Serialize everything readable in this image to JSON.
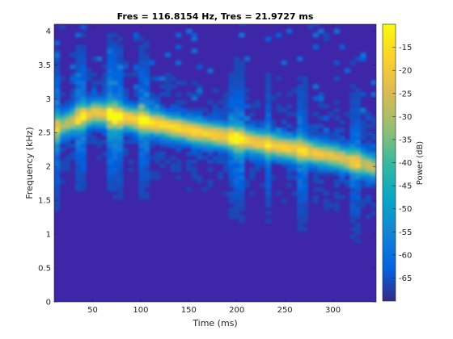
{
  "chart_data": {
    "type": "heatmap",
    "title": "Fres = 116.8154 Hz, Tres = 21.9727 ms",
    "xlabel": "Time (ms)",
    "ylabel": "Frequency (kHz)",
    "colorbar_label": "Power (dB)",
    "xlim": [
      10,
      345
    ],
    "ylim": [
      0,
      4.1
    ],
    "clim": [
      -70,
      -10
    ],
    "x_ticks": [
      50,
      100,
      150,
      200,
      250,
      300
    ],
    "y_ticks": [
      0,
      0.5,
      1,
      1.5,
      2,
      2.5,
      3,
      3.5,
      4
    ],
    "c_ticks": [
      -15,
      -20,
      -25,
      -30,
      -35,
      -40,
      -45,
      -50,
      -55,
      -60,
      -65
    ],
    "colormap": "parula",
    "ridge": {
      "description_points_time_ms": [
        10,
        50,
        100,
        150,
        200,
        250,
        300,
        345
      ],
      "frequency_khz": [
        2.55,
        2.78,
        2.65,
        2.5,
        2.38,
        2.25,
        2.12,
        1.95
      ],
      "peak_power_db": [
        -30,
        -20,
        -14,
        -16,
        -18,
        -18,
        -22,
        -26
      ]
    },
    "background_power_db": -67
  }
}
